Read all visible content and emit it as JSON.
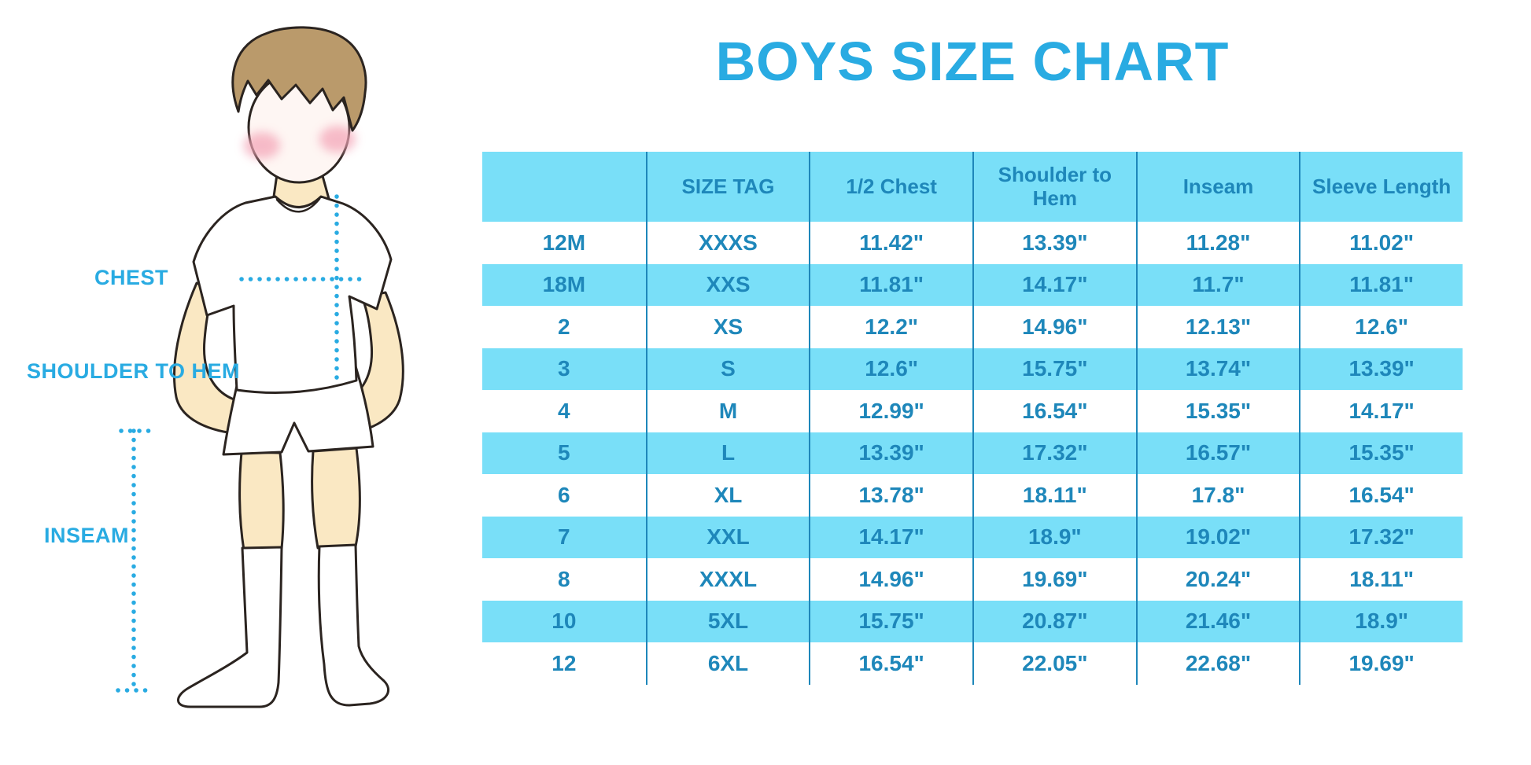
{
  "title": "BOYS SIZE CHART",
  "measure_labels": {
    "chest": "CHEST",
    "shoulder_to_hem": "SHOULDER TO HEM",
    "inseam": "INSEAM"
  },
  "colors": {
    "accent": "#29ABE2",
    "table_fill": "#79DFF8",
    "table_text": "#1E87BA",
    "divider": "#1E87BA",
    "skin": "#FAE8C3",
    "hair": "#BA9A6B",
    "outline": "#2B2420",
    "blush": "#F4A7B9"
  },
  "chart_data": {
    "type": "table",
    "title": "BOYS SIZE CHART",
    "columns": [
      "",
      "SIZE TAG",
      "1/2 Chest",
      "Shoulder to Hem",
      "Inseam",
      "Sleeve Length"
    ],
    "rows": [
      [
        "12M",
        "XXXS",
        "11.42\"",
        "13.39\"",
        "11.28\"",
        "11.02\""
      ],
      [
        "18M",
        "XXS",
        "11.81\"",
        "14.17\"",
        "11.7\"",
        "11.81\""
      ],
      [
        "2",
        "XS",
        "12.2\"",
        "14.96\"",
        "12.13\"",
        "12.6\""
      ],
      [
        "3",
        "S",
        "12.6\"",
        "15.75\"",
        "13.74\"",
        "13.39\""
      ],
      [
        "4",
        "M",
        "12.99\"",
        "16.54\"",
        "15.35\"",
        "14.17\""
      ],
      [
        "5",
        "L",
        "13.39\"",
        "17.32\"",
        "16.57\"",
        "15.35\""
      ],
      [
        "6",
        "XL",
        "13.78\"",
        "18.11\"",
        "17.8\"",
        "16.54\""
      ],
      [
        "7",
        "XXL",
        "14.17\"",
        "18.9\"",
        "19.02\"",
        "17.32\""
      ],
      [
        "8",
        "XXXL",
        "14.96\"",
        "19.69\"",
        "20.24\"",
        "18.11\""
      ],
      [
        "10",
        "5XL",
        "15.75\"",
        "20.87\"",
        "21.46\"",
        "18.9\""
      ],
      [
        "12",
        "6XL",
        "16.54\"",
        "22.05\"",
        "22.68\"",
        "19.69\""
      ]
    ],
    "striped_rows": "alternating white and cyan, header cyan",
    "legend_position": "none",
    "grid": "vertical dividers only"
  }
}
